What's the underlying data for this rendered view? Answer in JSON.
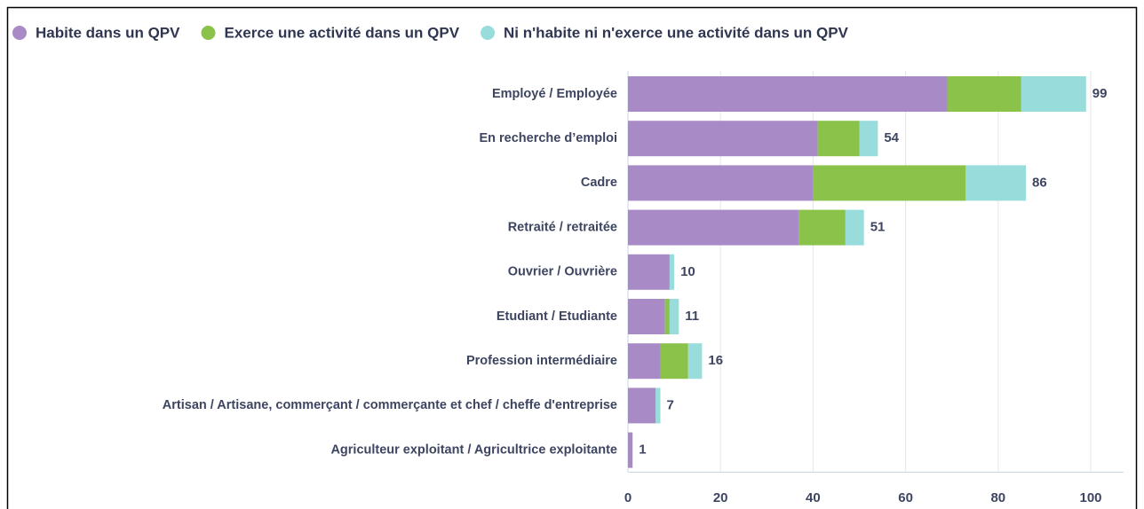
{
  "chart_data": {
    "type": "stacked-bar-horizontal",
    "categories": [
      "Employé / Employée",
      "En recherche d’emploi",
      "Cadre",
      "Retraité / retraitée",
      "Ouvrier / Ouvrière",
      "Etudiant / Etudiante",
      "Profession intermédiaire",
      "Artisan / Artisane, commerçant / commerçante et chef / cheffe d'entreprise",
      "Agriculteur exploitant / Agricultrice exploitante"
    ],
    "series": [
      {
        "name": "Habite dans un QPV",
        "color": "#a88ac6",
        "values": [
          69,
          41,
          40,
          37,
          9,
          8,
          7,
          6,
          1
        ]
      },
      {
        "name": "Exerce une activité dans un QPV",
        "color": "#8bc34a",
        "values": [
          16,
          9,
          33,
          10,
          0,
          1,
          6,
          0,
          0
        ]
      },
      {
        "name": "Ni n'habite ni n'exerce une activité dans un QPV",
        "color": "#98dcdb",
        "values": [
          14,
          4,
          13,
          4,
          1,
          2,
          3,
          1,
          0
        ]
      }
    ],
    "totals": [
      99,
      54,
      86,
      51,
      10,
      11,
      16,
      7,
      1
    ],
    "xlim": [
      0,
      100
    ],
    "xticks": [
      0,
      20,
      40,
      60,
      80,
      100
    ],
    "grid": true,
    "legend": "top"
  }
}
